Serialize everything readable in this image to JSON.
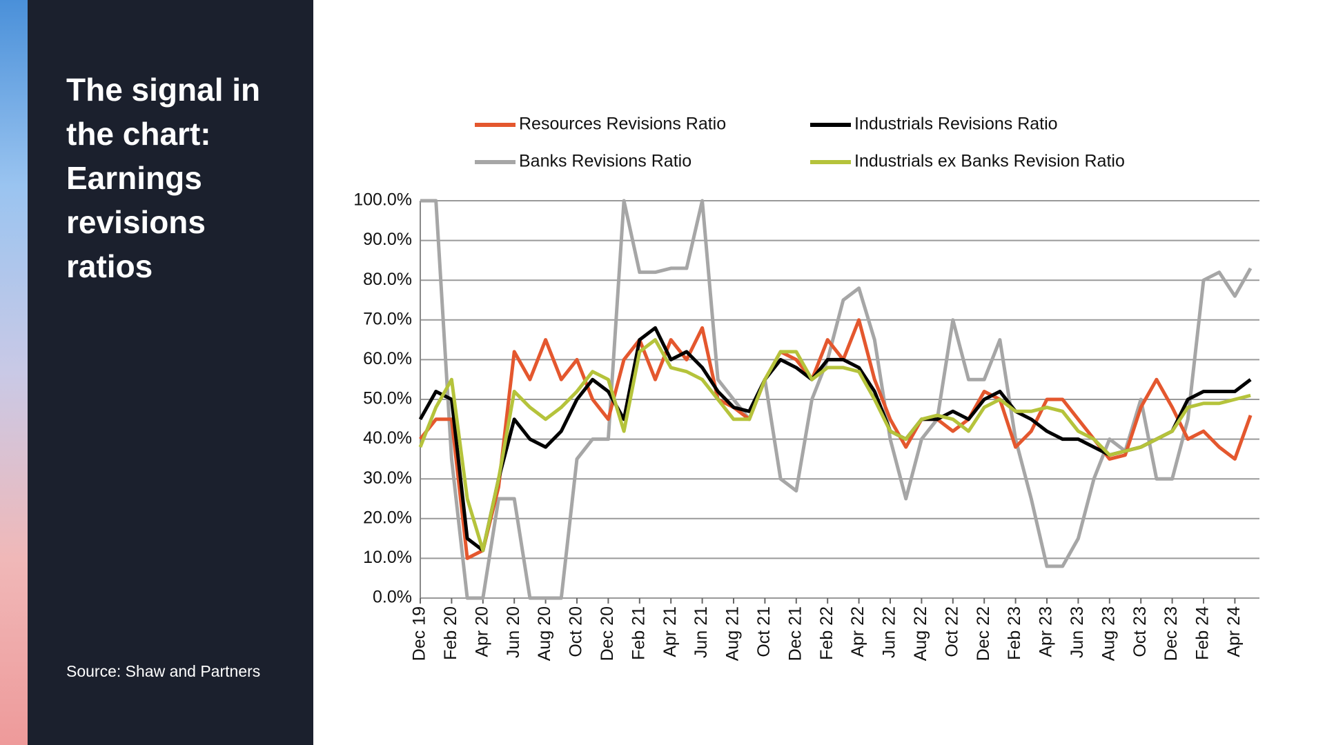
{
  "title": "The signal in the chart: Earnings revisions ratios",
  "source": "Source: Shaw and Partners",
  "chart_data": {
    "type": "line",
    "categories": [
      "Dec 19",
      null,
      "Feb 20",
      null,
      "Apr 20",
      null,
      "Jun 20",
      null,
      "Aug 20",
      null,
      "Oct 20",
      null,
      "Dec 20",
      null,
      "Feb 21",
      null,
      "Apr 21",
      null,
      "Jun 21",
      null,
      "Aug 21",
      null,
      "Oct 21",
      null,
      "Dec 21",
      null,
      "Feb 22",
      null,
      "Apr 22",
      null,
      "Jun 22",
      null,
      "Aug 22",
      null,
      "Oct 22",
      null,
      "Dec 22",
      null,
      "Feb 23",
      null,
      "Apr 23",
      null,
      "Jun 23",
      null,
      "Aug 23",
      null,
      "Oct 23",
      null,
      "Dec 23",
      null,
      "Feb 24",
      null,
      "Apr 24",
      null
    ],
    "series": [
      {
        "name": "Resources Revisions Ratio",
        "color": "#e4572e",
        "values": [
          40,
          45,
          45,
          10,
          12,
          28,
          62,
          55,
          65,
          55,
          60,
          50,
          45,
          60,
          65,
          55,
          65,
          60,
          68,
          50,
          48,
          45,
          55,
          62,
          60,
          55,
          65,
          60,
          70,
          55,
          45,
          38,
          45,
          45,
          42,
          45,
          52,
          50,
          38,
          42,
          50,
          50,
          45,
          40,
          35,
          36,
          48,
          55,
          48,
          40,
          42,
          38,
          35,
          46
        ]
      },
      {
        "name": "Industrials Revisions Ratio",
        "color": "#000000",
        "values": [
          45,
          52,
          50,
          15,
          12,
          30,
          45,
          40,
          38,
          42,
          50,
          55,
          52,
          45,
          65,
          68,
          60,
          62,
          58,
          52,
          48,
          47,
          55,
          60,
          58,
          55,
          60,
          60,
          58,
          52,
          42,
          40,
          45,
          45,
          47,
          45,
          50,
          52,
          47,
          45,
          42,
          40,
          40,
          38,
          36,
          37,
          38,
          40,
          42,
          50,
          52,
          52,
          52,
          55
        ]
      },
      {
        "name": "Banks Revisions Ratio",
        "color": "#a6a6a6",
        "values": [
          100,
          100,
          35,
          0,
          0,
          25,
          25,
          0,
          0,
          0,
          35,
          40,
          40,
          100,
          82,
          82,
          83,
          83,
          100,
          55,
          50,
          45,
          55,
          30,
          27,
          50,
          60,
          75,
          78,
          65,
          40,
          25,
          40,
          45,
          70,
          55,
          55,
          65,
          40,
          25,
          8,
          8,
          15,
          30,
          40,
          37,
          50,
          30,
          30,
          45,
          80,
          82,
          76,
          83
        ]
      },
      {
        "name": "Industrials ex Banks Revision Ratio",
        "color": "#b5c33b",
        "values": [
          38,
          48,
          55,
          25,
          12,
          30,
          52,
          48,
          45,
          48,
          52,
          57,
          55,
          42,
          62,
          65,
          58,
          57,
          55,
          50,
          45,
          45,
          55,
          62,
          62,
          55,
          58,
          58,
          57,
          50,
          42,
          40,
          45,
          46,
          45,
          42,
          48,
          50,
          47,
          47,
          48,
          47,
          42,
          40,
          36,
          37,
          38,
          40,
          42,
          48,
          49,
          49,
          50,
          51
        ]
      }
    ],
    "ylim": [
      0,
      100
    ],
    "yticks": [
      {
        "value": 0,
        "label": "0.0%"
      },
      {
        "value": 10,
        "label": "10.0%"
      },
      {
        "value": 20,
        "label": "20.0%"
      },
      {
        "value": 30,
        "label": "30.0%"
      },
      {
        "value": 40,
        "label": "40.0%"
      },
      {
        "value": 50,
        "label": "50.0%"
      },
      {
        "value": 60,
        "label": "60.0%"
      },
      {
        "value": 70,
        "label": "70.0%"
      },
      {
        "value": 80,
        "label": "80.0%"
      },
      {
        "value": 90,
        "label": "90.0%"
      },
      {
        "value": 100,
        "label": "100.0%"
      }
    ],
    "grid": true
  }
}
